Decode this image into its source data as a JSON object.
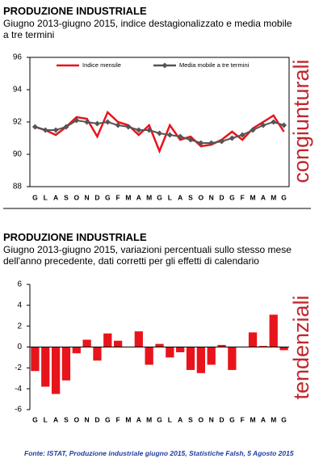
{
  "chart_data": [
    {
      "type": "line",
      "title": "PRODUZIONE INDUSTRIALE",
      "subtitle": "Giugno 2013-giugno 2015, indice destagionalizzato e media mobile a tre termini",
      "side_label": "congiunturali",
      "categories": [
        "G",
        "L",
        "A",
        "S",
        "O",
        "N",
        "D",
        "G",
        "F",
        "M",
        "A",
        "M",
        "G",
        "L",
        "A",
        "S",
        "O",
        "N",
        "D",
        "G",
        "F",
        "M",
        "A",
        "M",
        "G"
      ],
      "series": [
        {
          "name": "Indice mensile",
          "color": "#e8141b",
          "values": [
            91.7,
            91.5,
            91.2,
            91.7,
            92.3,
            92.2,
            91.1,
            92.6,
            92.0,
            91.8,
            91.2,
            91.8,
            90.2,
            91.8,
            90.9,
            91.1,
            90.5,
            90.6,
            90.9,
            91.4,
            90.9,
            91.6,
            92.0,
            92.4,
            91.4
          ]
        },
        {
          "name": "Media mobile a tre termini",
          "color": "#555555",
          "marker": "diamond",
          "values": [
            91.7,
            91.5,
            91.5,
            91.7,
            92.1,
            92.0,
            91.9,
            92.0,
            91.8,
            91.7,
            91.5,
            91.5,
            91.3,
            91.2,
            91.1,
            90.9,
            90.7,
            90.7,
            90.8,
            91.0,
            91.2,
            91.5,
            91.8,
            92.0,
            91.8
          ]
        }
      ],
      "ylim": [
        88,
        96
      ],
      "yticks": [
        88,
        90,
        92,
        94,
        96
      ],
      "legend": "top"
    },
    {
      "type": "bar",
      "title": "PRODUZIONE INDUSTRIALE",
      "subtitle": "Giugno 2013-giugno 2015, variazioni percentuali sullo stesso mese dell'anno precedente, dati corretti per gli effetti di calendario",
      "side_label": "tendenziali",
      "categories": [
        "G",
        "L",
        "A",
        "S",
        "O",
        "N",
        "D",
        "G",
        "F",
        "M",
        "A",
        "M",
        "G",
        "L",
        "A",
        "S",
        "O",
        "N",
        "D",
        "G",
        "F",
        "M",
        "A",
        "M",
        "G"
      ],
      "values": [
        -2.3,
        -3.8,
        -4.5,
        -3.2,
        -0.6,
        0.7,
        -1.3,
        1.3,
        0.6,
        0.0,
        1.5,
        -1.7,
        0.3,
        -1.0,
        -0.5,
        -2.2,
        -2.5,
        -1.7,
        0.2,
        -2.2,
        0.0,
        1.4,
        0.1,
        3.1,
        -0.3
      ],
      "color": "#e8141b",
      "ylim": [
        -6,
        6
      ],
      "yticks": [
        -6,
        -4,
        -2,
        0,
        2,
        4,
        6
      ]
    }
  ],
  "source": "Fonte: ISTAT, Produzione industriale giugno 2015, Statistiche Falsh, 5 Agosto 2015"
}
